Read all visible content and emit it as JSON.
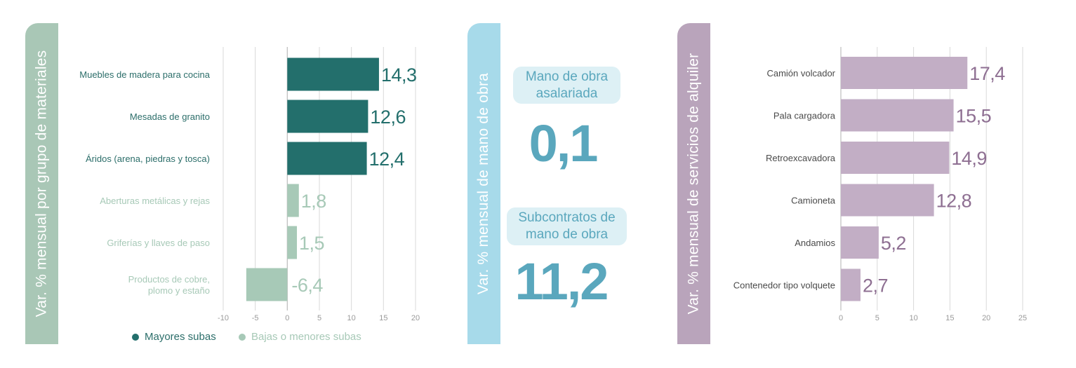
{
  "panel_left": {
    "band_title": "Var. % mensual por grupo de materiales",
    "legend": [
      {
        "label": "Mayores subas",
        "color": "#236f6c"
      },
      {
        "label": "Bajas o menores subas",
        "color": "#a7c9b7"
      }
    ]
  },
  "panel_mid": {
    "band_title": "Var. % mensual de mano de obra",
    "items": [
      {
        "label_line1": "Mano de obra",
        "label_line2": "asalariada",
        "value": "0,1"
      },
      {
        "label_line1": "Subcontratos de",
        "label_line2": "mano de obra",
        "value": "11,2"
      }
    ]
  },
  "panel_right": {
    "band_title": "Var. % mensual de servicios de alquiler"
  },
  "colors": {
    "dark_green": "#236f6c",
    "light_green": "#a7c9b7",
    "blue": "#5aa7bd",
    "purple_bar": "#c2aec5",
    "purple_text": "#8e6f92"
  },
  "chart_data": [
    {
      "type": "bar",
      "orientation": "horizontal",
      "title": "",
      "categories": [
        [
          "Muebles de madera para cocina"
        ],
        [
          "Mesadas de granito"
        ],
        [
          "Áridos (arena, piedras y tosca)"
        ],
        [
          "Aberturas metálicas y rejas"
        ],
        [
          "Griferías y llaves de paso"
        ],
        [
          "Productos de cobre,",
          "plomo y estaño"
        ]
      ],
      "values": [
        14.3,
        12.6,
        12.4,
        1.8,
        1.5,
        -6.4
      ],
      "value_labels": [
        "14,3",
        "12,6",
        "12,4",
        "1,8",
        "1,5",
        "-6,4"
      ],
      "groups": [
        "Mayores subas",
        "Mayores subas",
        "Mayores subas",
        "Bajas o menores subas",
        "Bajas o menores subas",
        "Bajas o menores subas"
      ],
      "xlim": [
        -10,
        20
      ],
      "xticks": [
        -10,
        -5,
        0,
        5,
        10,
        15,
        20
      ],
      "xtick_labels": [
        "-10",
        "-5",
        "0",
        "5",
        "10",
        "15",
        "20"
      ],
      "grid": true,
      "legend": "bottom"
    },
    {
      "type": "bar",
      "orientation": "horizontal",
      "title": "",
      "categories": [
        [
          "Camión volcador"
        ],
        [
          "Pala cargadora"
        ],
        [
          "Retroexcavadora"
        ],
        [
          "Camioneta"
        ],
        [
          "Andamios"
        ],
        [
          "Contenedor tipo volquete"
        ]
      ],
      "values": [
        17.4,
        15.5,
        14.9,
        12.8,
        5.2,
        2.7
      ],
      "value_labels": [
        "17,4",
        "15,5",
        "14,9",
        "12,8",
        "5,2",
        "2,7"
      ],
      "xlim": [
        0,
        25
      ],
      "xticks": [
        0,
        5,
        10,
        15,
        20,
        25
      ],
      "xtick_labels": [
        "0",
        "5",
        "10",
        "15",
        "20",
        "25"
      ],
      "grid": true
    }
  ]
}
